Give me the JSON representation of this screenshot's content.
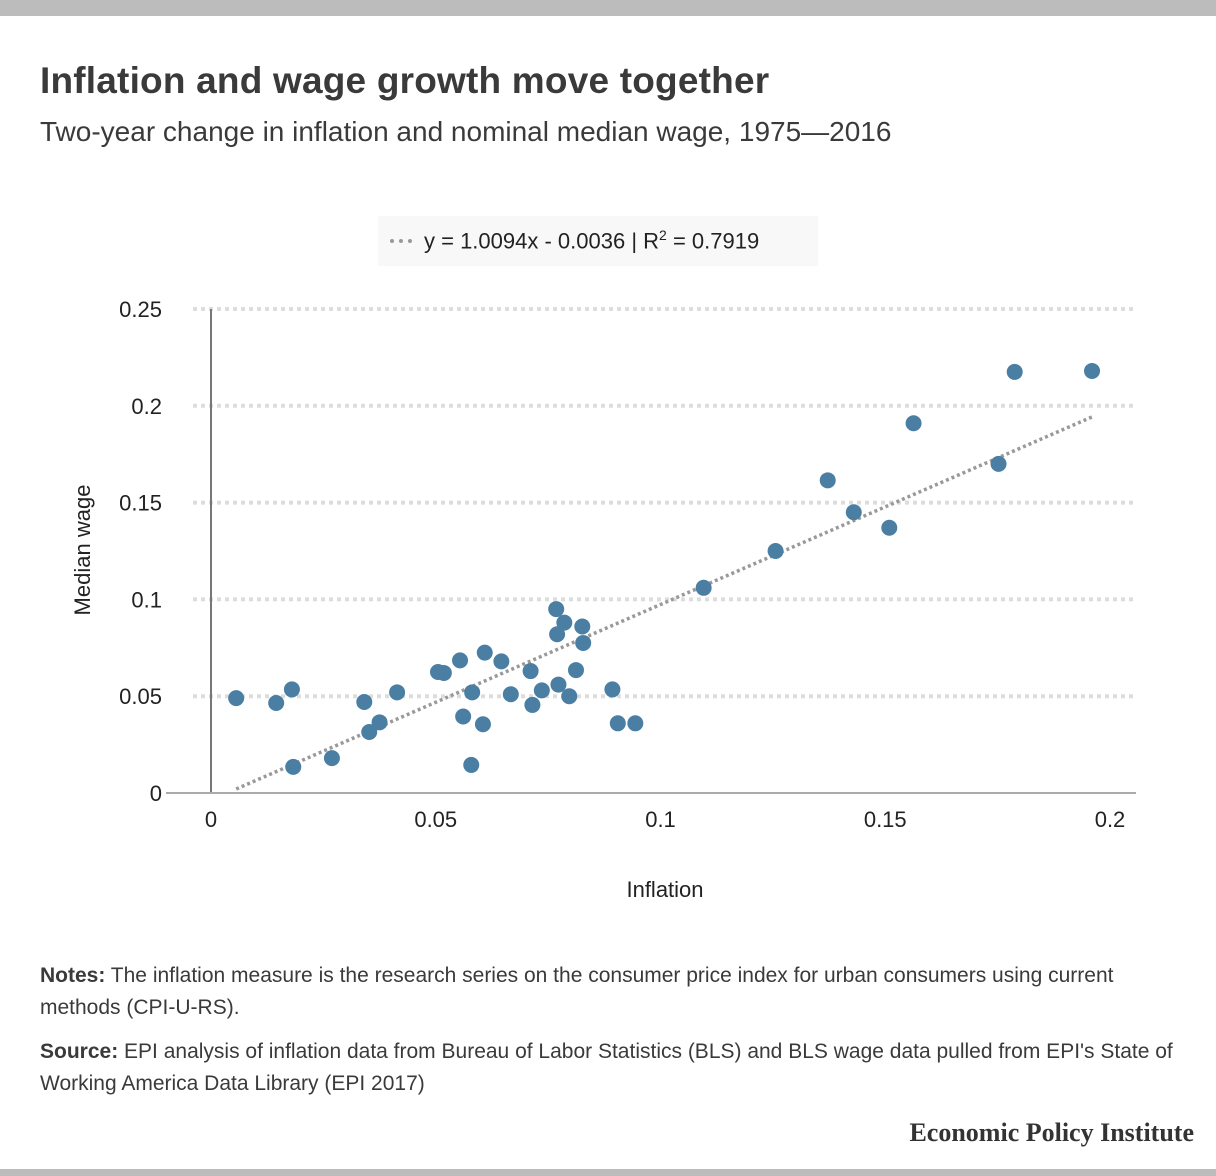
{
  "header": {
    "title": "Inflation and wage growth move together",
    "subtitle": "Two-year change in inflation and nominal median wage, 1975—2016"
  },
  "legend": {
    "prefix": "y = 1.0094x - 0.0036 | R",
    "sup": "2",
    "suffix": " = 0.7919"
  },
  "notes": {
    "notes_label": "Notes:",
    "notes_text": " The inflation measure is the research series on the consumer price index for urban consumers using current methods (CPI-U-RS).",
    "source_label": "Source:",
    "source_text": " EPI analysis of inflation data from Bureau of Labor Statistics (BLS) and BLS wage data pulled from EPI's State of Working America Data Library (EPI 2017)"
  },
  "branding": {
    "name": "Economic Policy Institute"
  },
  "chart_data": {
    "type": "scatter",
    "xlabel": "Inflation",
    "ylabel": "Median wage",
    "xlim": [
      0,
      0.2
    ],
    "ylim": [
      0,
      0.25
    ],
    "x_ticks": [
      "0",
      "0.05",
      "0.1",
      "0.15",
      "0.2"
    ],
    "y_ticks": [
      "0",
      "0.05",
      "0.1",
      "0.15",
      "0.2",
      "0.25"
    ],
    "x_tick_values": [
      0,
      0.05,
      0.1,
      0.15,
      0.2
    ],
    "y_tick_values": [
      0,
      0.05,
      0.1,
      0.15,
      0.2,
      0.25
    ],
    "grid": "horizontal dotted",
    "point_color": "#4a7fa3",
    "trendline": {
      "slope": 1.0094,
      "intercept": -0.0036,
      "r2": 0.7919,
      "x_range": [
        0.0056,
        0.196
      ],
      "color": "#999999"
    },
    "points": [
      {
        "x": 0.0056,
        "y": 0.049
      },
      {
        "x": 0.0145,
        "y": 0.0465
      },
      {
        "x": 0.018,
        "y": 0.0535
      },
      {
        "x": 0.0183,
        "y": 0.0135
      },
      {
        "x": 0.0269,
        "y": 0.018
      },
      {
        "x": 0.0341,
        "y": 0.047
      },
      {
        "x": 0.0352,
        "y": 0.0315
      },
      {
        "x": 0.0375,
        "y": 0.0365
      },
      {
        "x": 0.0414,
        "y": 0.052
      },
      {
        "x": 0.0505,
        "y": 0.0625
      },
      {
        "x": 0.0518,
        "y": 0.062
      },
      {
        "x": 0.0554,
        "y": 0.0685
      },
      {
        "x": 0.0561,
        "y": 0.0395
      },
      {
        "x": 0.0581,
        "y": 0.052
      },
      {
        "x": 0.0579,
        "y": 0.0145
      },
      {
        "x": 0.0605,
        "y": 0.0355
      },
      {
        "x": 0.0609,
        "y": 0.0725
      },
      {
        "x": 0.0646,
        "y": 0.068
      },
      {
        "x": 0.0667,
        "y": 0.051
      },
      {
        "x": 0.0711,
        "y": 0.063
      },
      {
        "x": 0.0715,
        "y": 0.0455
      },
      {
        "x": 0.0736,
        "y": 0.053
      },
      {
        "x": 0.0768,
        "y": 0.095
      },
      {
        "x": 0.077,
        "y": 0.082
      },
      {
        "x": 0.0773,
        "y": 0.056
      },
      {
        "x": 0.0786,
        "y": 0.088
      },
      {
        "x": 0.0797,
        "y": 0.05
      },
      {
        "x": 0.0812,
        "y": 0.0635
      },
      {
        "x": 0.0826,
        "y": 0.086
      },
      {
        "x": 0.0828,
        "y": 0.0775
      },
      {
        "x": 0.0893,
        "y": 0.0535
      },
      {
        "x": 0.0905,
        "y": 0.036
      },
      {
        "x": 0.0944,
        "y": 0.036
      },
      {
        "x": 0.1096,
        "y": 0.106
      },
      {
        "x": 0.1256,
        "y": 0.125
      },
      {
        "x": 0.1372,
        "y": 0.1615
      },
      {
        "x": 0.143,
        "y": 0.145
      },
      {
        "x": 0.1509,
        "y": 0.137
      },
      {
        "x": 0.1563,
        "y": 0.191
      },
      {
        "x": 0.1752,
        "y": 0.17
      },
      {
        "x": 0.1788,
        "y": 0.2175
      },
      {
        "x": 0.196,
        "y": 0.218
      }
    ]
  }
}
